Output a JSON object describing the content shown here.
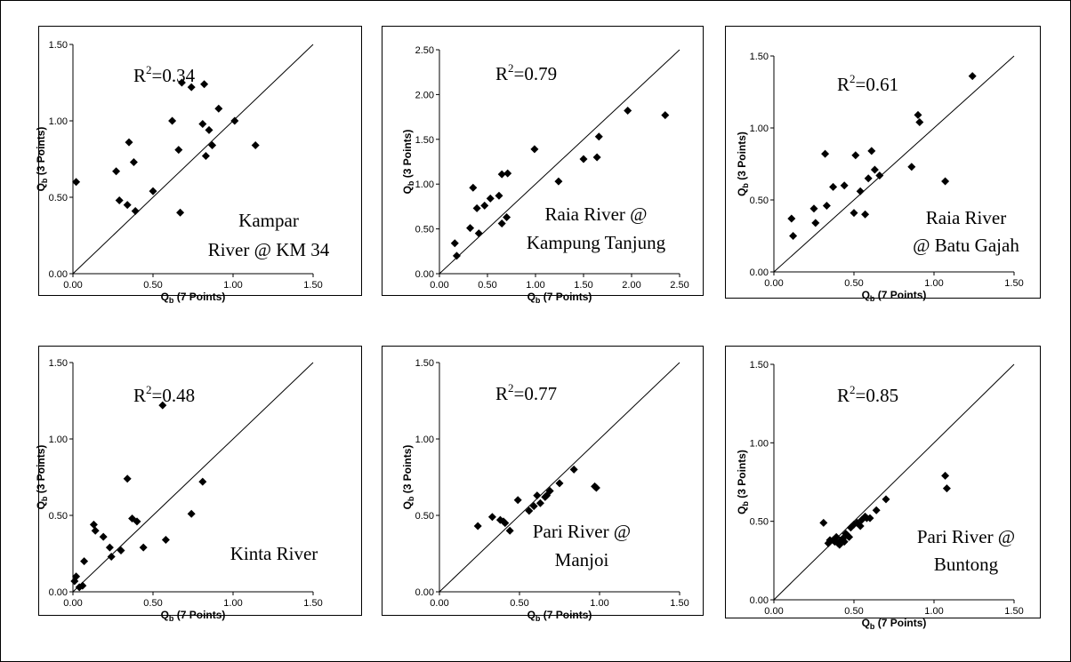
{
  "chart_data": [
    {
      "type": "scatter",
      "axis_symbol": "Q",
      "axis_subscript": "b",
      "xlabel_suffix": " (7 Points)",
      "ylabel_suffix": " (3 Points)",
      "r2_label": "R",
      "r2_exponent": "2",
      "r2_value": "=0.34",
      "site": [
        "Kampar",
        "River @ KM 34"
      ],
      "xlim": [
        0,
        1.5
      ],
      "ylim": [
        0,
        1.5
      ],
      "xticks": [
        "0.00",
        "0.50",
        "1.00",
        "1.50"
      ],
      "yticks": [
        "0.00",
        "0.50",
        "1.00",
        "1.50"
      ],
      "diagonal_line": true,
      "points": [
        [
          0.02,
          0.6
        ],
        [
          0.27,
          0.67
        ],
        [
          0.29,
          0.48
        ],
        [
          0.34,
          0.45
        ],
        [
          0.35,
          0.86
        ],
        [
          0.38,
          0.73
        ],
        [
          0.39,
          0.41
        ],
        [
          0.5,
          0.54
        ],
        [
          0.62,
          1.0
        ],
        [
          0.66,
          0.81
        ],
        [
          0.67,
          0.4
        ],
        [
          0.68,
          1.25
        ],
        [
          0.74,
          1.22
        ],
        [
          0.81,
          0.98
        ],
        [
          0.82,
          1.24
        ],
        [
          0.83,
          0.77
        ],
        [
          0.85,
          0.94
        ],
        [
          0.87,
          0.84
        ],
        [
          0.91,
          1.08
        ],
        [
          1.01,
          1.0
        ],
        [
          1.14,
          0.84
        ]
      ]
    },
    {
      "type": "scatter",
      "axis_symbol": "Q",
      "axis_subscript": "b",
      "xlabel_suffix": " (7 Points)",
      "ylabel_suffix": " (3 Points)",
      "r2_label": "R",
      "r2_exponent": "2",
      "r2_value": "=0.79",
      "site": [
        "Raia River @",
        "Kampung Tanjung"
      ],
      "xlim": [
        0,
        2.5
      ],
      "ylim": [
        0,
        2.5
      ],
      "xticks": [
        "0.00",
        "0.50",
        "1.00",
        "1.50",
        "2.00",
        "2.50"
      ],
      "yticks": [
        "0.00",
        "0.50",
        "1.00",
        "1.50",
        "2.00",
        "2.50"
      ],
      "diagonal_line": true,
      "points": [
        [
          0.16,
          0.34
        ],
        [
          0.18,
          0.2
        ],
        [
          0.32,
          0.51
        ],
        [
          0.35,
          0.96
        ],
        [
          0.39,
          0.73
        ],
        [
          0.41,
          0.45
        ],
        [
          0.47,
          0.76
        ],
        [
          0.53,
          0.84
        ],
        [
          0.62,
          0.87
        ],
        [
          0.65,
          0.56
        ],
        [
          0.65,
          1.11
        ],
        [
          0.7,
          0.63
        ],
        [
          0.71,
          1.12
        ],
        [
          0.99,
          1.39
        ],
        [
          1.24,
          1.03
        ],
        [
          1.5,
          1.28
        ],
        [
          1.64,
          1.3
        ],
        [
          1.66,
          1.53
        ],
        [
          1.96,
          1.82
        ],
        [
          2.35,
          1.77
        ]
      ]
    },
    {
      "type": "scatter",
      "axis_symbol": "Q",
      "axis_subscript": "b",
      "xlabel_suffix": " (7 Points)",
      "ylabel_suffix": " (3 Points)",
      "r2_label": "R",
      "r2_exponent": "2",
      "r2_value": "=0.61",
      "site": [
        "Raia River",
        "@ Batu Gajah"
      ],
      "xlim": [
        0,
        1.5
      ],
      "ylim": [
        0,
        1.5
      ],
      "xticks": [
        "0.00",
        "0.50",
        "1.00",
        "1.50"
      ],
      "yticks": [
        "0.00",
        "0.50",
        "1.00",
        "1.50"
      ],
      "diagonal_line": true,
      "points": [
        [
          0.11,
          0.37
        ],
        [
          0.12,
          0.25
        ],
        [
          0.25,
          0.44
        ],
        [
          0.26,
          0.34
        ],
        [
          0.32,
          0.82
        ],
        [
          0.33,
          0.46
        ],
        [
          0.37,
          0.59
        ],
        [
          0.44,
          0.6
        ],
        [
          0.5,
          0.41
        ],
        [
          0.51,
          0.81
        ],
        [
          0.54,
          0.56
        ],
        [
          0.57,
          0.4
        ],
        [
          0.59,
          0.65
        ],
        [
          0.61,
          0.84
        ],
        [
          0.63,
          0.71
        ],
        [
          0.66,
          0.67
        ],
        [
          0.86,
          0.73
        ],
        [
          0.9,
          1.09
        ],
        [
          0.91,
          1.04
        ],
        [
          1.07,
          0.63
        ],
        [
          1.24,
          1.36
        ]
      ]
    },
    {
      "type": "scatter",
      "axis_symbol": "Q",
      "axis_subscript": "b",
      "xlabel_suffix": " (7 Points)",
      "ylabel_suffix": " (3 Points)",
      "r2_label": "R",
      "r2_exponent": "2",
      "r2_value": "=0.48",
      "site": [
        "Kinta River"
      ],
      "xlim": [
        0,
        1.5
      ],
      "ylim": [
        0,
        1.5
      ],
      "xticks": [
        "0.00",
        "0.50",
        "1.00",
        "1.50"
      ],
      "yticks": [
        "0.00",
        "0.50",
        "1.00",
        "1.50"
      ],
      "diagonal_line": true,
      "points": [
        [
          0.01,
          0.07
        ],
        [
          0.02,
          0.1
        ],
        [
          0.04,
          0.03
        ],
        [
          0.06,
          0.04
        ],
        [
          0.07,
          0.2
        ],
        [
          0.13,
          0.44
        ],
        [
          0.14,
          0.4
        ],
        [
          0.19,
          0.36
        ],
        [
          0.23,
          0.29
        ],
        [
          0.24,
          0.23
        ],
        [
          0.3,
          0.27
        ],
        [
          0.34,
          0.74
        ],
        [
          0.37,
          0.48
        ],
        [
          0.4,
          0.46
        ],
        [
          0.44,
          0.29
        ],
        [
          0.56,
          1.22
        ],
        [
          0.58,
          0.34
        ],
        [
          0.74,
          0.51
        ],
        [
          0.81,
          0.72
        ]
      ]
    },
    {
      "type": "scatter",
      "axis_symbol": "Q",
      "axis_subscript": "b",
      "xlabel_suffix": " (7 Points)",
      "ylabel_suffix": " (3 Points)",
      "r2_label": "R",
      "r2_exponent": "2",
      "r2_value": "=0.77",
      "site": [
        "Pari River @",
        "Manjoi"
      ],
      "xlim": [
        0,
        1.5
      ],
      "ylim": [
        0,
        1.5
      ],
      "xticks": [
        "0.00",
        "0.50",
        "1.00",
        "1.50"
      ],
      "yticks": [
        "0.00",
        "0.50",
        "1.00",
        "1.50"
      ],
      "diagonal_line": true,
      "points": [
        [
          0.24,
          0.43
        ],
        [
          0.33,
          0.49
        ],
        [
          0.38,
          0.47
        ],
        [
          0.4,
          0.46
        ],
        [
          0.41,
          0.45
        ],
        [
          0.44,
          0.4
        ],
        [
          0.49,
          0.6
        ],
        [
          0.56,
          0.53
        ],
        [
          0.59,
          0.56
        ],
        [
          0.61,
          0.63
        ],
        [
          0.63,
          0.58
        ],
        [
          0.66,
          0.62
        ],
        [
          0.67,
          0.63
        ],
        [
          0.69,
          0.66
        ],
        [
          0.75,
          0.71
        ],
        [
          0.84,
          0.8
        ],
        [
          0.97,
          0.69
        ],
        [
          0.98,
          0.68
        ]
      ]
    },
    {
      "type": "scatter",
      "axis_symbol": "Q",
      "axis_subscript": "b",
      "xlabel_suffix": " (7 Points)",
      "ylabel_suffix": " (3 Points)",
      "r2_label": "R",
      "r2_exponent": "2",
      "r2_value": "=0.85",
      "site": [
        "Pari River @",
        "Buntong"
      ],
      "xlim": [
        0,
        1.5
      ],
      "ylim": [
        0,
        1.5
      ],
      "xticks": [
        "0.00",
        "0.50",
        "1.00",
        "1.50"
      ],
      "yticks": [
        "0.00",
        "0.50",
        "1.00",
        "1.50"
      ],
      "diagonal_line": true,
      "points": [
        [
          0.31,
          0.49
        ],
        [
          0.34,
          0.36
        ],
        [
          0.35,
          0.38
        ],
        [
          0.37,
          0.38
        ],
        [
          0.38,
          0.37
        ],
        [
          0.39,
          0.4
        ],
        [
          0.4,
          0.36
        ],
        [
          0.41,
          0.35
        ],
        [
          0.42,
          0.38
        ],
        [
          0.43,
          0.39
        ],
        [
          0.44,
          0.37
        ],
        [
          0.45,
          0.42
        ],
        [
          0.46,
          0.41
        ],
        [
          0.47,
          0.4
        ],
        [
          0.48,
          0.46
        ],
        [
          0.5,
          0.48
        ],
        [
          0.52,
          0.49
        ],
        [
          0.54,
          0.47
        ],
        [
          0.55,
          0.51
        ],
        [
          0.57,
          0.53
        ],
        [
          0.58,
          0.52
        ],
        [
          0.6,
          0.52
        ],
        [
          0.64,
          0.57
        ],
        [
          0.7,
          0.64
        ],
        [
          1.07,
          0.79
        ],
        [
          1.08,
          0.71
        ]
      ]
    }
  ]
}
